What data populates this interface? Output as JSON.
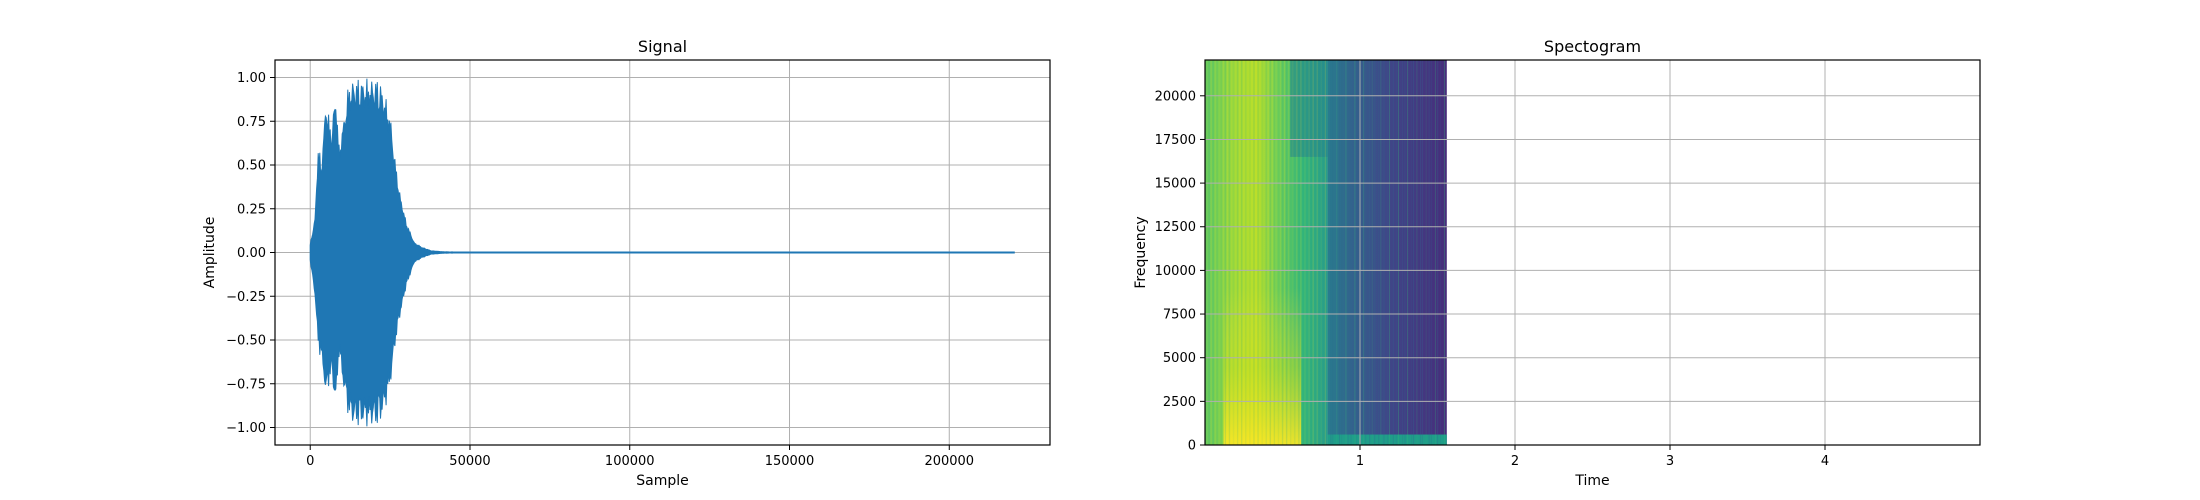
{
  "chart_data": [
    {
      "type": "line",
      "title": "Signal",
      "xlabel": "Sample",
      "ylabel": "Amplitude",
      "xlim": [
        -11025,
        231525
      ],
      "ylim": [
        -1.1,
        1.1
      ],
      "grid": true,
      "xticks": [
        0,
        50000,
        100000,
        150000,
        200000
      ],
      "xtick_labels": [
        "0",
        "50000",
        "100000",
        "150000",
        "200000"
      ],
      "yticks": [
        -1.0,
        -0.75,
        -0.5,
        -0.25,
        0.0,
        0.25,
        0.5,
        0.75,
        1.0
      ],
      "ytick_labels": [
        "−1.00",
        "−0.75",
        "−0.50",
        "−0.25",
        "0.00",
        "0.25",
        "0.50",
        "0.75",
        "1.00"
      ],
      "series_color": "#1f77b4",
      "envelope": {
        "x": [
          0,
          1500,
          2500,
          3500,
          5000,
          6500,
          8000,
          9000,
          10500,
          12000,
          13500,
          15000,
          17000,
          18500,
          20000,
          21000,
          22000,
          23500,
          25000,
          26500,
          28000,
          30000,
          32500,
          35000,
          38000,
          42000,
          50000,
          220500
        ],
        "upper": [
          0.05,
          0.2,
          0.62,
          0.52,
          0.9,
          0.7,
          0.94,
          0.62,
          0.78,
          0.97,
          1.0,
          1.0,
          1.0,
          1.0,
          1.0,
          1.0,
          0.98,
          0.9,
          0.8,
          0.55,
          0.35,
          0.18,
          0.06,
          0.03,
          0.01,
          0.004,
          0.002,
          0.0
        ],
        "lower": [
          -0.05,
          -0.25,
          -0.55,
          -0.62,
          -0.85,
          -0.7,
          -0.9,
          -0.6,
          -0.8,
          -0.95,
          -1.0,
          -1.0,
          -1.0,
          -1.0,
          -1.0,
          -1.0,
          -0.98,
          -0.9,
          -0.78,
          -0.55,
          -0.38,
          -0.2,
          -0.06,
          -0.03,
          -0.01,
          -0.004,
          -0.002,
          0.0
        ]
      }
    },
    {
      "type": "heatmap",
      "title": "Spectogram",
      "xlabel": "Time",
      "ylabel": "Frequency",
      "xlim": [
        0,
        5
      ],
      "ylim": [
        0,
        22050
      ],
      "grid": true,
      "xticks": [
        1,
        2,
        3,
        4
      ],
      "xtick_labels": [
        "1",
        "2",
        "3",
        "4"
      ],
      "yticks": [
        0,
        2500,
        5000,
        7500,
        10000,
        12500,
        15000,
        17500,
        20000
      ],
      "ytick_labels": [
        "0",
        "2500",
        "5000",
        "7500",
        "10000",
        "12500",
        "15000",
        "17500",
        "20000"
      ],
      "extent": {
        "t_start": 0.0,
        "t_end": 1.56,
        "f_top": 22050
      },
      "colormap": [
        "#440154",
        "#482878",
        "#3e4a89",
        "#31688e",
        "#26828e",
        "#1f9e89",
        "#35b779",
        "#6ece58",
        "#b5de2b",
        "#fde725"
      ]
    }
  ]
}
